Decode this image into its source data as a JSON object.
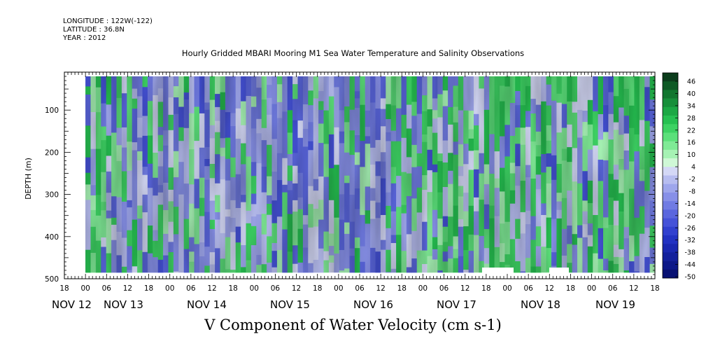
{
  "header": {
    "longitude": "LONGITUDE : 122W(-122)",
    "latitude": "LATITUDE : 36.8N",
    "year": "YEAR : 2012"
  },
  "chart_data": {
    "type": "heatmap",
    "title": "Hourly Gridded MBARI Mooring M1 Sea Water Temperature and Salinity Observations",
    "variable_title": "V Component of Water Velocity (cm s-1)",
    "ylabel": "DEPTH (m)",
    "y_axis": {
      "ticks": [
        100,
        200,
        300,
        400,
        500
      ],
      "ylim": [
        500,
        10
      ],
      "inverted": true
    },
    "x_axis": {
      "hour_ticks": [
        "18",
        "00",
        "06",
        "12",
        "18",
        "00",
        "06",
        "12",
        "18",
        "00",
        "06",
        "12",
        "18",
        "00",
        "06",
        "12",
        "18",
        "00",
        "06",
        "12",
        "18",
        "00",
        "06",
        "12",
        "18",
        "00",
        "06",
        "12",
        "18"
      ],
      "day_labels": [
        "NOV 12",
        "NOV 13",
        "NOV 14",
        "NOV 15",
        "NOV 16",
        "NOV 17",
        "NOV 18",
        "NOV 19"
      ],
      "range": [
        "NOV 11 18:00",
        "NOV 19 18:00"
      ]
    },
    "data_extent": {
      "start": "NOV 12 00:00",
      "end": "NOV 19 18:00",
      "depth_min": 20,
      "depth_max": 485
    },
    "colorbar": {
      "labels": [
        "46",
        "40",
        "34",
        "28",
        "22",
        "16",
        "10",
        "4",
        "-2",
        "-8",
        "-14",
        "-20",
        "-26",
        "-32",
        "-38",
        "-44",
        "-50"
      ],
      "min": -50,
      "max": 52,
      "step": 3,
      "colors_top_to_bottom": [
        "#0b3d1c",
        "#0e5a25",
        "#12762f",
        "#178f3a",
        "#1ca844",
        "#26c051",
        "#3dd263",
        "#5be07a",
        "#7fea96",
        "#a6f2b4",
        "#cff8d6",
        "#d4d8f6",
        "#b7bdf0",
        "#9ea6ec",
        "#8790e8",
        "#707be3",
        "#5a66de",
        "#4552d8",
        "#3140cf",
        "#2232c2",
        "#1a28b0",
        "#13209c",
        "#0d1888",
        "#081173"
      ]
    },
    "series_description": [
      {
        "period": "NOV 12 - NOV 13",
        "mean_v": 0
      },
      {
        "period": "NOV 13 - NOV 15",
        "mean_v": -8
      },
      {
        "period": "NOV 15 - NOV 16",
        "mean_v": -12
      },
      {
        "period": "NOV 16 - NOV 17",
        "mean_v": 2
      },
      {
        "period": "NOV 17 - NOV 19",
        "mean_v": 10
      }
    ]
  }
}
